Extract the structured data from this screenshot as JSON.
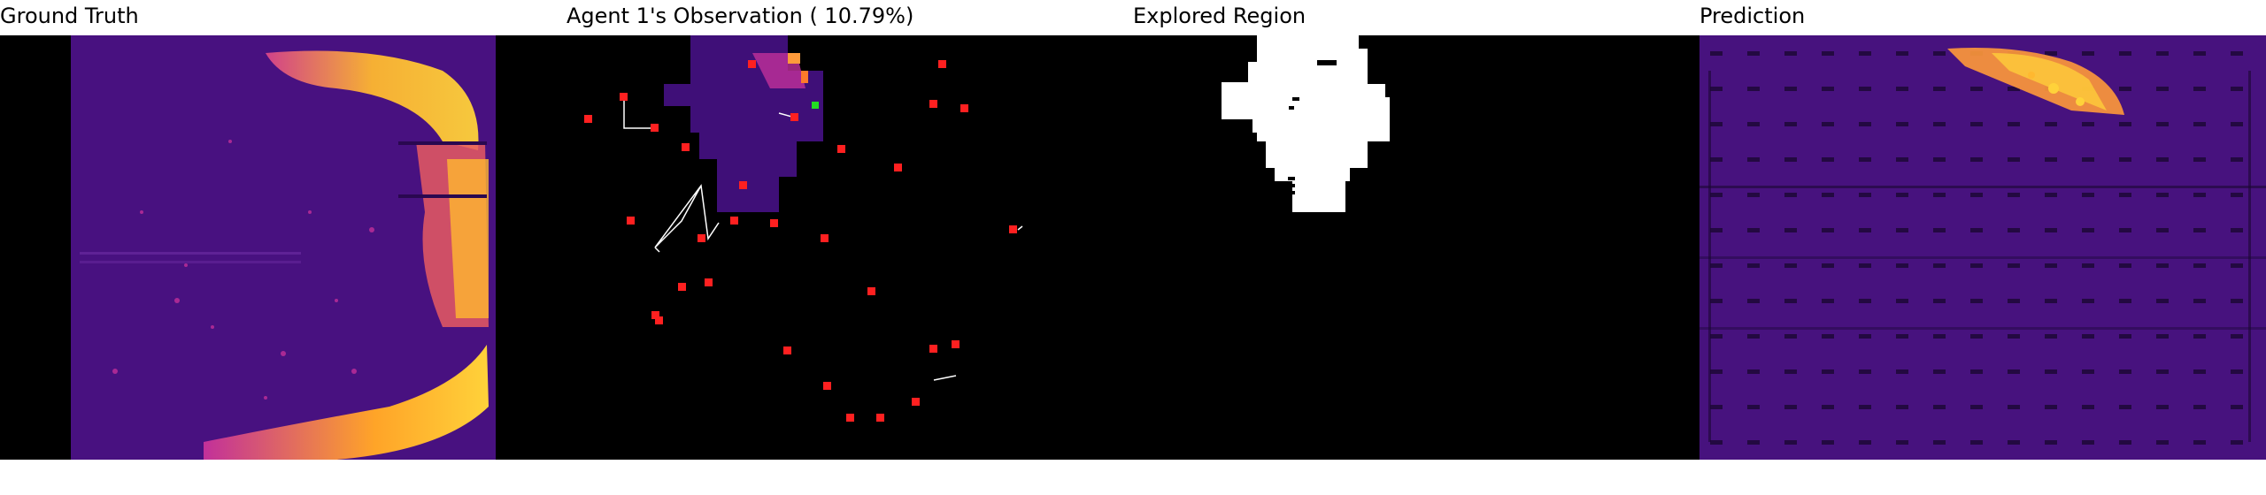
{
  "panels": [
    {
      "id": "ground_truth",
      "title": "Ground Truth"
    },
    {
      "id": "agent_observation",
      "title": "Agent 1's Observation ( 10.79%)"
    },
    {
      "id": "explored_region",
      "title": "Explored Region"
    },
    {
      "id": "prediction",
      "title": "Prediction"
    }
  ],
  "colors": {
    "background": "#000000",
    "heat_low": "#3b0a6b",
    "heat_mid": "#c2309a",
    "heat_high": "#ffd23a",
    "explored": "#ffffff",
    "agent_marker": "#ff2020",
    "active_agent": "#22dd22"
  },
  "observation": {
    "explored_percent": 10.79,
    "agent_count": 30
  }
}
